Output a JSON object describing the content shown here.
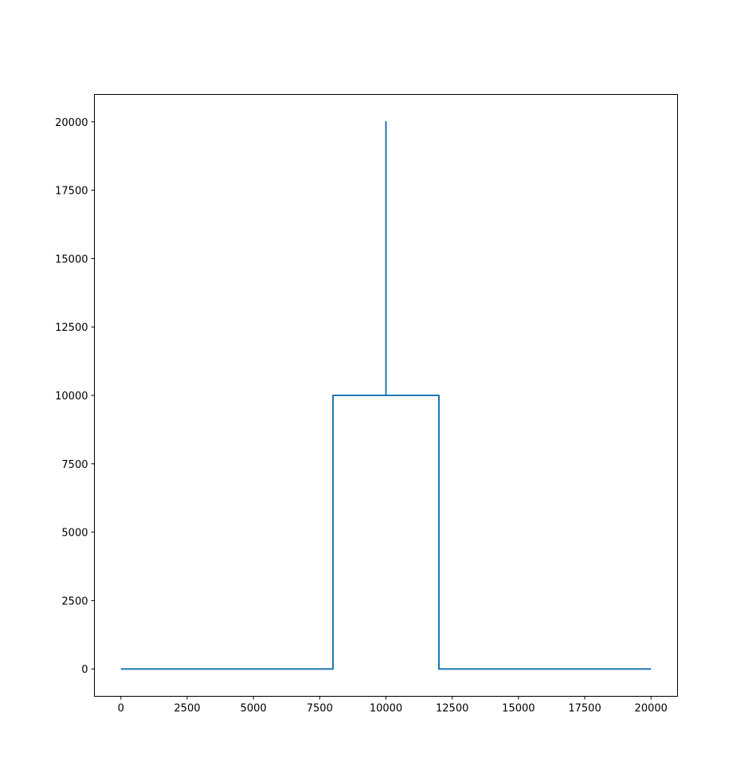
{
  "chart_data": {
    "type": "line",
    "title": "",
    "xlabel": "",
    "ylabel": "",
    "xlim": [
      -1000,
      21000
    ],
    "ylim": [
      -1000,
      21000
    ],
    "grid": false,
    "x_ticks": [
      0,
      2500,
      5000,
      7500,
      10000,
      12500,
      15000,
      17500,
      20000
    ],
    "y_ticks": [
      0,
      2500,
      5000,
      7500,
      10000,
      12500,
      15000,
      17500,
      20000
    ],
    "x_tick_labels": [
      "0",
      "2500",
      "5000",
      "7500",
      "10000",
      "12500",
      "15000",
      "17500",
      "20000"
    ],
    "y_tick_labels": [
      "0",
      "2500",
      "5000",
      "7500",
      "10000",
      "12500",
      "15000",
      "17500",
      "20000"
    ],
    "series": [
      {
        "color": "#1f77b4",
        "x": [
          0,
          8000,
          8000,
          10000,
          10000,
          10000,
          12000,
          12000,
          20000
        ],
        "y": [
          0,
          0,
          10000,
          10000,
          20000,
          10000,
          10000,
          0,
          0
        ]
      }
    ]
  }
}
